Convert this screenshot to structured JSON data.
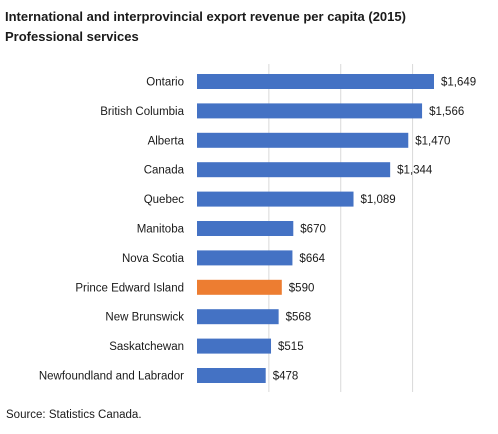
{
  "chart_data": {
    "type": "bar",
    "orientation": "horizontal",
    "title": "International and interprovincial export revenue per capita (2015)",
    "subtitle": "Professional services",
    "xlabel": "",
    "ylabel": "",
    "xlim": [
      0,
      1800
    ],
    "grid": true,
    "legend": "none",
    "categories": [
      "Ontario",
      "British Columbia",
      "Alberta",
      "Canada",
      "Quebec",
      "Manitoba",
      "Nova Scotia",
      "Prince Edward Island",
      "New Brunswick",
      "Saskatchewan",
      "Newfoundland and Labrador"
    ],
    "values": [
      1649,
      1566,
      1470,
      1344,
      1089,
      670,
      664,
      590,
      568,
      515,
      478
    ],
    "data_labels": [
      "$1,649",
      "$1,566",
      "$1,470",
      "$1,344",
      "$1,089",
      "$670",
      "$664",
      "$590",
      "$568",
      "$515",
      "$478"
    ],
    "bar_color": "#4472c4",
    "highlight": {
      "category": "Prince Edward Island",
      "color": "#ed7d31"
    }
  },
  "source": "Source: Statistics Canada."
}
